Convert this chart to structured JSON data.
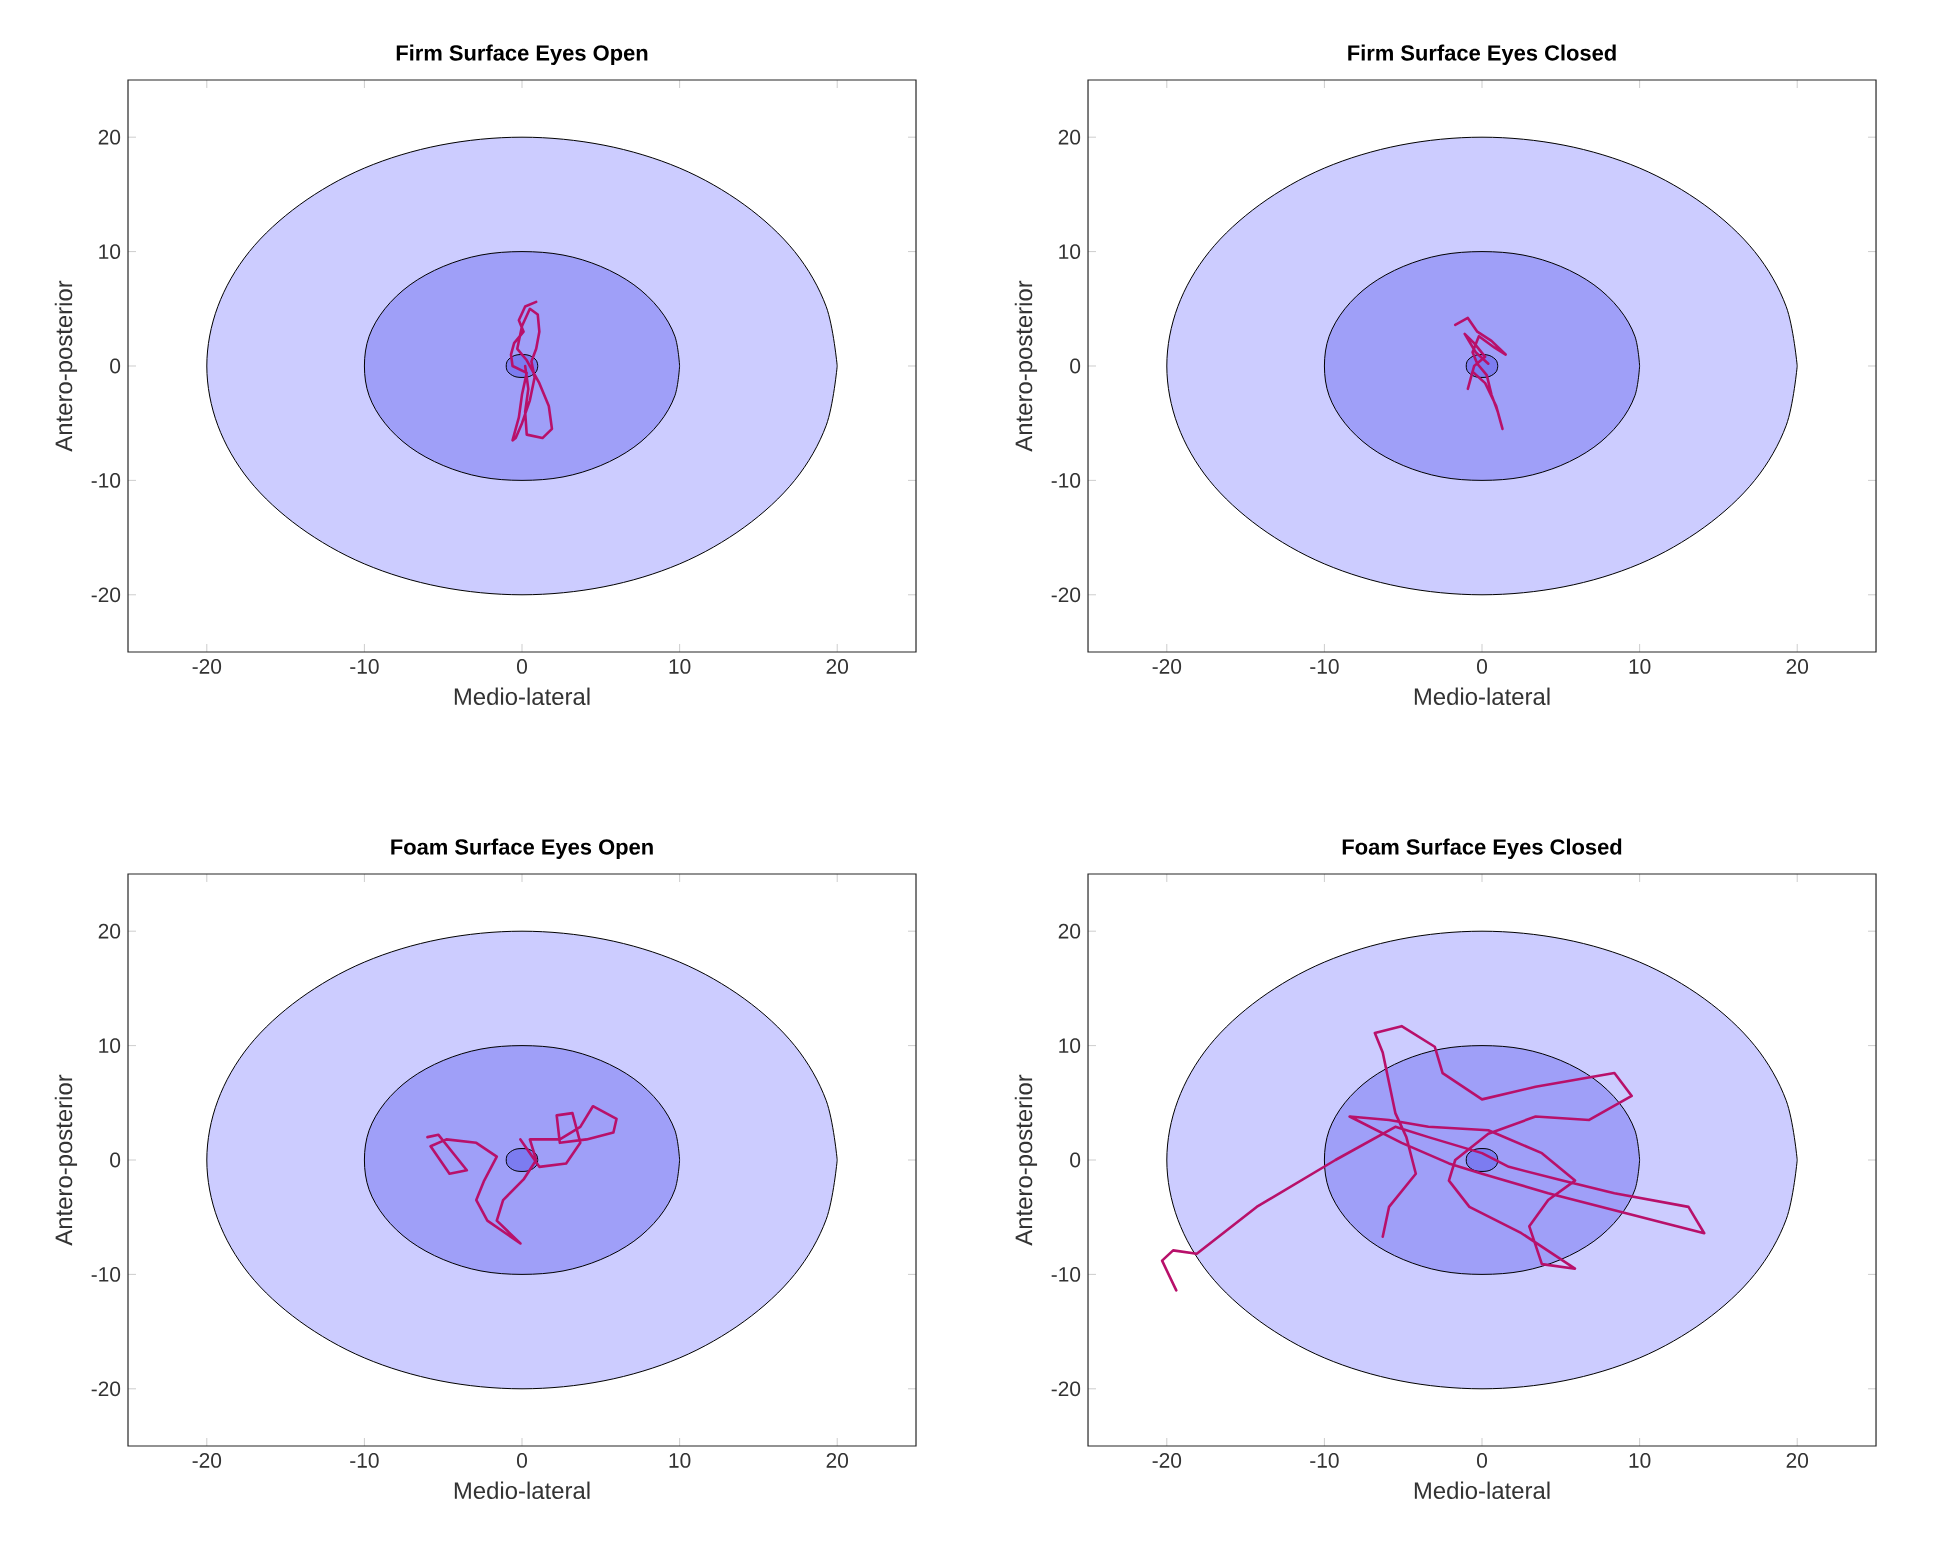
{
  "chart_data": [
    {
      "type": "line",
      "title": "Firm Surface Eyes Open",
      "xlabel": "Medio-lateral",
      "ylabel": "Antero-posterior",
      "xlim": [
        -25,
        25
      ],
      "ylim": [
        -25,
        25
      ],
      "xticks": [
        -20,
        -10,
        0,
        10,
        20
      ],
      "yticks": [
        -20,
        -10,
        0,
        10,
        20
      ],
      "series": [
        {
          "type": "area",
          "color": "#ccccff",
          "x": [
            20,
            19.3,
            17.3,
            14.1,
            10,
            5.2,
            0,
            -5.2,
            -10,
            -14.1,
            -17.3,
            -19.3,
            -20,
            -19.3,
            -17.3,
            -14.1,
            -10,
            -5.2,
            0,
            5.2,
            10,
            14.1,
            17.3,
            19.3,
            20
          ],
          "values": [
            0,
            5.2,
            10,
            14.1,
            17.3,
            19.3,
            20,
            19.3,
            17.3,
            14.1,
            10,
            5.2,
            0,
            -5.2,
            -10,
            -14.1,
            -17.3,
            -19.3,
            -20,
            -19.3,
            -17.3,
            -14.1,
            -10,
            -5.2,
            0
          ]
        },
        {
          "type": "area",
          "color": "#9f9ff8",
          "x": [
            10,
            9.7,
            8.7,
            7.1,
            5,
            2.6,
            0,
            -2.6,
            -5,
            -7.1,
            -8.7,
            -9.7,
            -10,
            -9.7,
            -8.7,
            -7.1,
            -5,
            -2.6,
            0,
            2.6,
            5,
            7.1,
            8.7,
            9.7,
            10
          ],
          "values": [
            0,
            2.6,
            5,
            7.1,
            8.7,
            9.7,
            10,
            9.7,
            8.7,
            7.1,
            5,
            2.6,
            0,
            -2.6,
            -5,
            -7.1,
            -8.7,
            -9.7,
            -10,
            -9.7,
            -8.7,
            -7.1,
            -5,
            -2.6,
            0
          ]
        },
        {
          "type": "area",
          "color": "#7c7cf0",
          "x": [
            1,
            0.9,
            0.5,
            0,
            -0.5,
            -0.9,
            -1,
            -0.9,
            -0.5,
            0,
            0.5,
            0.9,
            1
          ],
          "values": [
            0,
            0.5,
            0.9,
            1,
            0.9,
            0.5,
            0,
            -0.5,
            -0.9,
            -1,
            -0.9,
            -0.5,
            0
          ]
        },
        {
          "color": "#b8106a",
          "x": [
            0.9,
            0.2,
            -0.2,
            0.1,
            -0.5,
            -0.7,
            -0.6,
            0.3,
            0.0,
            -0.2,
            -0.6,
            -0.4,
            0.0,
            0.5,
            0.8,
            0.6,
            0.9,
            1.1,
            1.0,
            0.5,
            0.0,
            -0.3,
            0.3,
            1.1,
            1.7,
            1.9,
            1.3,
            0.3,
            0.2,
            0.4,
            0.2
          ],
          "values": [
            5.6,
            5.2,
            4.0,
            3.0,
            2.0,
            1.0,
            0.0,
            -0.6,
            -2.5,
            -4.5,
            -6.5,
            -6.3,
            -5.0,
            -3.0,
            -1.0,
            0.4,
            1.5,
            3.0,
            4.5,
            5.0,
            3.5,
            1.5,
            0.5,
            -1.5,
            -3.5,
            -5.5,
            -6.3,
            -6.0,
            -4.0,
            -2.0,
            0.0
          ]
        }
      ]
    },
    {
      "type": "line",
      "title": "Firm Surface Eyes Closed",
      "xlabel": "Medio-lateral",
      "ylabel": "Antero-posterior",
      "xlim": [
        -25,
        25
      ],
      "ylim": [
        -25,
        25
      ],
      "xticks": [
        -20,
        -10,
        0,
        10,
        20
      ],
      "yticks": [
        -20,
        -10,
        0,
        10,
        20
      ],
      "series": [
        {
          "type": "area",
          "color": "#ccccff",
          "x": [
            20,
            19.3,
            17.3,
            14.1,
            10,
            5.2,
            0,
            -5.2,
            -10,
            -14.1,
            -17.3,
            -19.3,
            -20,
            -19.3,
            -17.3,
            -14.1,
            -10,
            -5.2,
            0,
            5.2,
            10,
            14.1,
            17.3,
            19.3,
            20
          ],
          "values": [
            0,
            5.2,
            10,
            14.1,
            17.3,
            19.3,
            20,
            19.3,
            17.3,
            14.1,
            10,
            5.2,
            0,
            -5.2,
            -10,
            -14.1,
            -17.3,
            -19.3,
            -20,
            -19.3,
            -17.3,
            -14.1,
            -10,
            -5.2,
            0
          ]
        },
        {
          "type": "area",
          "color": "#9f9ff8",
          "x": [
            10,
            9.7,
            8.7,
            7.1,
            5,
            2.6,
            0,
            -2.6,
            -5,
            -7.1,
            -8.7,
            -9.7,
            -10,
            -9.7,
            -8.7,
            -7.1,
            -5,
            -2.6,
            0,
            2.6,
            5,
            7.1,
            8.7,
            9.7,
            10
          ],
          "values": [
            0,
            2.6,
            5,
            7.1,
            8.7,
            9.7,
            10,
            9.7,
            8.7,
            7.1,
            5,
            2.6,
            0,
            -2.6,
            -5,
            -7.1,
            -8.7,
            -9.7,
            -10,
            -9.7,
            -8.7,
            -7.1,
            -5,
            -2.6,
            0
          ]
        },
        {
          "type": "area",
          "color": "#7c7cf0",
          "x": [
            1,
            0.9,
            0.5,
            0,
            -0.5,
            -0.9,
            -1,
            -0.9,
            -0.5,
            0,
            0.5,
            0.9,
            1
          ],
          "values": [
            0,
            0.5,
            0.9,
            1,
            0.9,
            0.5,
            0,
            -0.5,
            -0.9,
            -1,
            -0.9,
            -0.5,
            0
          ]
        },
        {
          "color": "#b8106a",
          "x": [
            -1.7,
            -0.9,
            -0.3,
            0.6,
            1.5,
            0.8,
            -0.2,
            -0.6,
            -0.3,
            0.3,
            0.6,
            1.0,
            1.3,
            0.9,
            0.2,
            -0.6,
            -0.9,
            -0.5,
            0.2,
            -0.5,
            -1.1,
            -0.4,
            0.4
          ],
          "values": [
            3.6,
            4.2,
            3.0,
            2.2,
            1.0,
            1.6,
            2.6,
            1.2,
            0.2,
            -0.8,
            -2.5,
            -4.0,
            -5.5,
            -3.5,
            -1.5,
            -0.5,
            -2.0,
            0.0,
            0.8,
            2.0,
            2.8,
            1.2,
            0.2
          ]
        }
      ]
    },
    {
      "type": "line",
      "title": "Foam Surface Eyes Open",
      "xlabel": "Medio-lateral",
      "ylabel": "Antero-posterior",
      "xlim": [
        -25,
        25
      ],
      "ylim": [
        -25,
        25
      ],
      "xticks": [
        -20,
        -10,
        0,
        10,
        20
      ],
      "yticks": [
        -20,
        -10,
        0,
        10,
        20
      ],
      "series": [
        {
          "type": "area",
          "color": "#ccccff",
          "x": [
            20,
            19.3,
            17.3,
            14.1,
            10,
            5.2,
            0,
            -5.2,
            -10,
            -14.1,
            -17.3,
            -19.3,
            -20,
            -19.3,
            -17.3,
            -14.1,
            -10,
            -5.2,
            0,
            5.2,
            10,
            14.1,
            17.3,
            19.3,
            20
          ],
          "values": [
            0,
            5.2,
            10,
            14.1,
            17.3,
            19.3,
            20,
            19.3,
            17.3,
            14.1,
            10,
            5.2,
            0,
            -5.2,
            -10,
            -14.1,
            -17.3,
            -19.3,
            -20,
            -19.3,
            -17.3,
            -14.1,
            -10,
            -5.2,
            0
          ]
        },
        {
          "type": "area",
          "color": "#9f9ff8",
          "x": [
            10,
            9.7,
            8.7,
            7.1,
            5,
            2.6,
            0,
            -2.6,
            -5,
            -7.1,
            -8.7,
            -9.7,
            -10,
            -9.7,
            -8.7,
            -7.1,
            -5,
            -2.6,
            0,
            2.6,
            5,
            7.1,
            8.7,
            9.7,
            10
          ],
          "values": [
            0,
            2.6,
            5,
            7.1,
            8.7,
            9.7,
            10,
            9.7,
            8.7,
            7.1,
            5,
            2.6,
            0,
            -2.6,
            -5,
            -7.1,
            -8.7,
            -9.7,
            -10,
            -9.7,
            -8.7,
            -7.1,
            -5,
            -2.6,
            0
          ]
        },
        {
          "type": "area",
          "color": "#7c7cf0",
          "x": [
            1,
            0.9,
            0.5,
            0,
            -0.5,
            -0.9,
            -1,
            -0.9,
            -0.5,
            0,
            0.5,
            0.9,
            1
          ],
          "values": [
            0,
            0.5,
            0.9,
            1,
            0.9,
            0.5,
            0,
            -0.5,
            -0.9,
            -1,
            -0.9,
            -0.5,
            0
          ]
        },
        {
          "color": "#b8106a",
          "x": [
            -6.0,
            -5.3,
            -3.5,
            -4.6,
            -5.8,
            -4.8,
            -2.9,
            -1.6,
            -2.4,
            -2.9,
            -2.2,
            -0.1,
            -1.6,
            -1.2,
            0.1,
            0.9,
            0.5,
            2.4,
            3.7,
            4.5,
            6.0,
            5.8,
            4.1,
            2.4,
            2.2,
            3.2,
            3.7,
            2.8,
            1.1,
            -0.1
          ],
          "values": [
            2.0,
            2.2,
            -0.9,
            -1.2,
            1.2,
            1.8,
            1.5,
            0.3,
            -1.8,
            -3.5,
            -5.3,
            -7.3,
            -5.3,
            -3.5,
            -1.7,
            0.0,
            1.8,
            1.8,
            2.9,
            4.7,
            3.6,
            2.4,
            1.8,
            1.5,
            3.9,
            4.1,
            1.5,
            -0.3,
            -0.6,
            1.8
          ]
        }
      ]
    },
    {
      "type": "line",
      "title": "Foam Surface Eyes Closed",
      "xlabel": "Medio-lateral",
      "ylabel": "Antero-posterior",
      "xlim": [
        -25,
        25
      ],
      "ylim": [
        -25,
        25
      ],
      "xticks": [
        -20,
        -10,
        0,
        10,
        20
      ],
      "yticks": [
        -20,
        -10,
        0,
        10,
        20
      ],
      "series": [
        {
          "type": "area",
          "color": "#ccccff",
          "x": [
            20,
            19.3,
            17.3,
            14.1,
            10,
            5.2,
            0,
            -5.2,
            -10,
            -14.1,
            -17.3,
            -19.3,
            -20,
            -19.3,
            -17.3,
            -14.1,
            -10,
            -5.2,
            0,
            5.2,
            10,
            14.1,
            17.3,
            19.3,
            20
          ],
          "values": [
            0,
            5.2,
            10,
            14.1,
            17.3,
            19.3,
            20,
            19.3,
            17.3,
            14.1,
            10,
            5.2,
            0,
            -5.2,
            -10,
            -14.1,
            -17.3,
            -19.3,
            -20,
            -19.3,
            -17.3,
            -14.1,
            -10,
            -5.2,
            0
          ]
        },
        {
          "type": "area",
          "color": "#9f9ff8",
          "x": [
            10,
            9.7,
            8.7,
            7.1,
            5,
            2.6,
            0,
            -2.6,
            -5,
            -7.1,
            -8.7,
            -9.7,
            -10,
            -9.7,
            -8.7,
            -7.1,
            -5,
            -2.6,
            0,
            2.6,
            5,
            7.1,
            8.7,
            9.7,
            10
          ],
          "values": [
            0,
            2.6,
            5,
            7.1,
            8.7,
            9.7,
            10,
            9.7,
            8.7,
            7.1,
            5,
            2.6,
            0,
            -2.6,
            -5,
            -7.1,
            -8.7,
            -9.7,
            -10,
            -9.7,
            -8.7,
            -7.1,
            -5,
            -2.6,
            0
          ]
        },
        {
          "type": "area",
          "color": "#7c7cf0",
          "x": [
            1,
            0.9,
            0.5,
            0,
            -0.5,
            -0.9,
            -1,
            -0.9,
            -0.5,
            0,
            0.5,
            0.9,
            1
          ],
          "values": [
            0,
            0.5,
            0.9,
            1,
            0.9,
            0.5,
            0,
            -0.5,
            -0.9,
            -1,
            -0.9,
            -0.5,
            0
          ]
        },
        {
          "color": "#b8106a",
          "x": [
            -19.4,
            -20.3,
            -19.6,
            -18.1,
            -14.3,
            -9.3,
            -5.5,
            -3.4,
            0,
            1.7,
            5.1,
            8.4,
            13.1,
            14.1,
            11.8,
            8.4,
            4.2,
            0,
            -2.1,
            -5.1,
            -8.4,
            -5.9,
            -3.4,
            0.4,
            3.8,
            5.9,
            4.2,
            3.0,
            3.8,
            5.9,
            2.5,
            -0.8,
            -2.1,
            -1.7,
            0.4,
            3.4,
            6.8,
            9.5,
            8.4,
            3.4,
            0,
            -2.5,
            -3.0,
            -5.1,
            -6.8,
            -6.3,
            -5.5,
            -4.8,
            -4.2,
            -5.9,
            -6.3
          ],
          "values": [
            -11.4,
            -8.8,
            -7.9,
            -8.2,
            -4.1,
            0,
            2.9,
            2.0,
            0.6,
            -0.6,
            -1.8,
            -2.9,
            -4.1,
            -6.4,
            -5.6,
            -4.4,
            -2.9,
            -1.2,
            -0.3,
            1.5,
            3.8,
            3.5,
            2.9,
            2.6,
            0.6,
            -1.8,
            -3.5,
            -5.8,
            -9.1,
            -9.5,
            -6.4,
            -4.1,
            -1.8,
            0,
            2.3,
            3.8,
            3.5,
            5.6,
            7.6,
            6.4,
            5.3,
            7.6,
            9.9,
            11.7,
            11.1,
            9.4,
            4.1,
            2.0,
            -1.2,
            -4.1,
            -6.7
          ]
        }
      ]
    }
  ]
}
